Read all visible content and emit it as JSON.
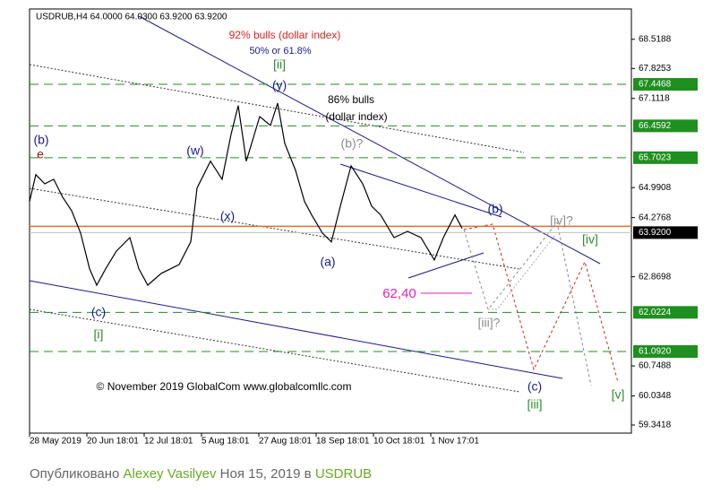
{
  "chart_data": {
    "type": "line",
    "header": "USDRUB,H4  64.0000 64.0300 63.9200 63.9200",
    "color": "#000000",
    "x": [
      0,
      3.5,
      8.5,
      13.5,
      18.5,
      23.5,
      28.5,
      33.5,
      37.5,
      42.5,
      48.5,
      56,
      61,
      66,
      73.5,
      83.5,
      90,
      93.5,
      101,
      107.5,
      112.5,
      116.5,
      121,
      128.5,
      134.5,
      138.5,
      142.5,
      148.5,
      153.5,
      157.5,
      163.5,
      168.5,
      173.5,
      179.5,
      186,
      191,
      196,
      203.5,
      211,
      218.5,
      226,
      231,
      237.5,
      241.5
    ],
    "values": [
      64.66,
      65.3,
      65.08,
      65.19,
      64.76,
      64.44,
      63.91,
      63.06,
      62.67,
      63.06,
      63.48,
      63.8,
      63.06,
      62.67,
      62.95,
      63.16,
      63.7,
      64.98,
      65.62,
      65.19,
      66.26,
      66.94,
      65.62,
      66.68,
      66.47,
      67.0,
      66.04,
      65.4,
      64.66,
      64.34,
      63.91,
      63.7,
      64.55,
      65.51,
      65.08,
      64.55,
      64.34,
      63.8,
      63.95,
      63.8,
      63.27,
      63.8,
      64.34,
      64.02
    ],
    "xlim": [
      0,
      336
    ],
    "xticks": [
      {
        "value": 0,
        "label": "28 May 2019"
      },
      {
        "value": 32,
        "label": "20 Jun 18:01"
      },
      {
        "value": 64,
        "label": "12 Jul 18:01"
      },
      {
        "value": 96,
        "label": "5 Aug 18:01"
      },
      {
        "value": 128,
        "label": "27 Aug 18:01"
      },
      {
        "value": 160,
        "label": "18 Sep 18:01"
      },
      {
        "value": 192,
        "label": "10 Oct 18:01"
      },
      {
        "value": 224,
        "label": "1 Nov 17:01"
      }
    ],
    "ylim": [
      59.15,
      69.24
    ],
    "yticks": [
      68.5188,
      67.8253,
      67.1118,
      64.9908,
      64.2768,
      62.8698,
      60.7488,
      60.0348,
      59.3418
    ],
    "levels": [
      67.4468,
      66.4592,
      65.7023,
      62.0224,
      {
        "value": 61.092,
        "label": "61.0920"
      }
    ],
    "level_color": "#1f8f1f",
    "current_price": {
      "value": 63.92,
      "label": "63.9200"
    },
    "orange_level": 64.07,
    "annotations": [
      {
        "text": "92% bulls  (dollar index)",
        "color": "#e02020"
      },
      {
        "text": "50% or 61.8%",
        "color": "#1a1a8c"
      },
      {
        "text": "[ii]",
        "color": "#2e8b2e"
      },
      {
        "text": "(y)",
        "color": "#1a1a8c"
      },
      {
        "text": "86% bulls",
        "color": "#000000"
      },
      {
        "text": "(dollar index)",
        "color": "#000000"
      },
      {
        "text": "(b)?",
        "color": "#8c8c8c"
      },
      {
        "text": "(b)",
        "color": "#1a1a8c"
      },
      {
        "text": "e",
        "color": "#a01010"
      },
      {
        "text": "(w)",
        "color": "#1a1a8c"
      },
      {
        "text": "(x)",
        "color": "#1a1a8c"
      },
      {
        "text": "(a)",
        "color": "#1a1a8c"
      },
      {
        "text": "(b)",
        "color": "#1a1a8c"
      },
      {
        "text": "[iv]?",
        "color": "#8c8c8c"
      },
      {
        "text": "[iv]",
        "color": "#2e8b2e"
      },
      {
        "text": "62,40",
        "color": "#e020c0"
      },
      {
        "text": "(c)",
        "color": "#1a1a8c"
      },
      {
        "text": "[i]",
        "color": "#2e8b2e"
      },
      {
        "text": "[iii]?",
        "color": "#8c8c8c"
      },
      {
        "text": "(c)",
        "color": "#1a1a8c"
      },
      {
        "text": "[iii]",
        "color": "#2e8b2e"
      },
      {
        "text": "[v]",
        "color": "#2e8b2e"
      },
      {
        "text": "© November 2019 GlobalCom www.globalcomllc.com",
        "color": "#000000"
      }
    ]
  },
  "footer": {
    "prefix": "Опубликовано",
    "author": "Alexey Vasilyev",
    "date": "Ноя 15, 2019 в",
    "symbol": "USDRUB"
  }
}
